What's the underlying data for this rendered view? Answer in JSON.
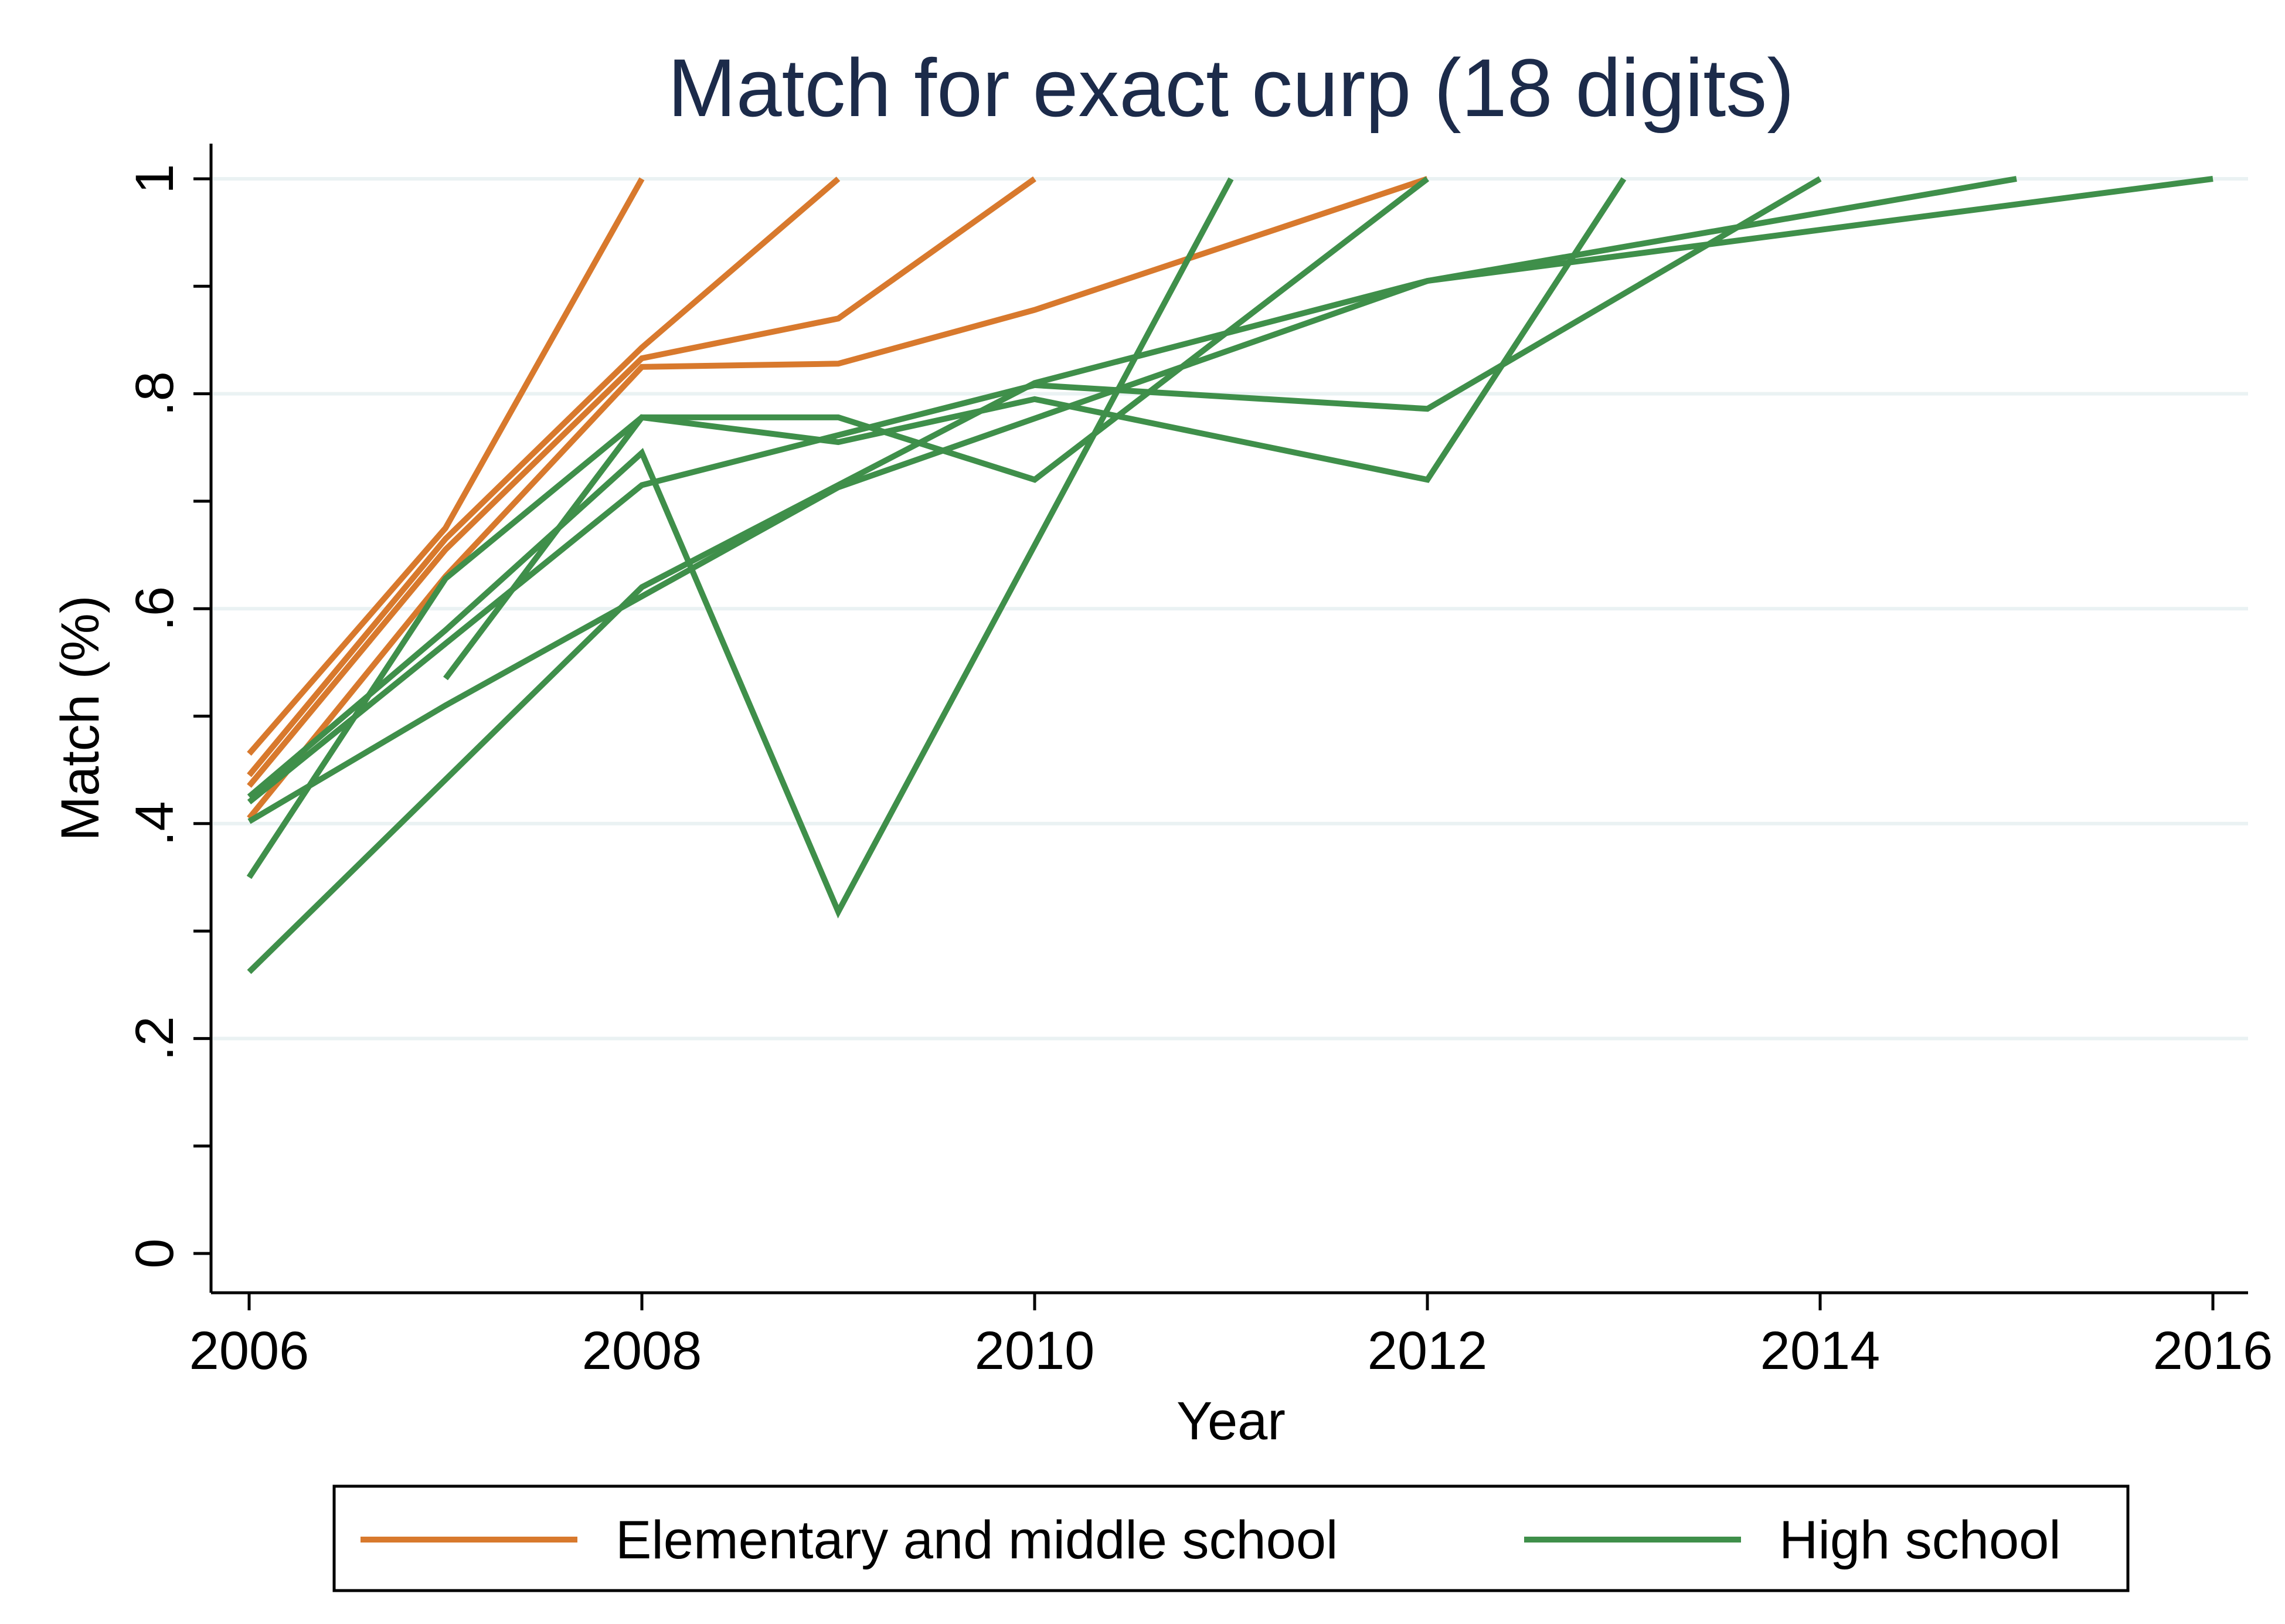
{
  "chart_data": {
    "type": "line",
    "title": "Match for exact curp (18 digits)",
    "xlabel": "Year",
    "ylabel": "Match (%)",
    "xlim": [
      2006,
      2016
    ],
    "ylim": [
      0,
      1
    ],
    "x_ticks": [
      2006,
      2008,
      2010,
      2012,
      2014,
      2016
    ],
    "y_ticks": [
      0,
      0.2,
      0.4,
      0.6,
      0.8,
      1
    ],
    "y_tick_labels": [
      "0",
      ".2",
      ".4",
      ".6",
      ".8",
      "1"
    ],
    "grid": true,
    "legend": {
      "position": "bottom",
      "entries": [
        {
          "label": "Elementary and middle school",
          "color": "#d8792d"
        },
        {
          "label": "High school",
          "color": "#3f8f4a"
        }
      ]
    },
    "colors": {
      "Elementary and middle school": "#d8792d",
      "High school": "#3f8f4a"
    },
    "series": [
      {
        "group": "Elementary and middle school",
        "points": [
          [
            2006,
            0.465
          ],
          [
            2007,
            0.675
          ],
          [
            2008,
            1.0
          ]
        ]
      },
      {
        "group": "Elementary and middle school",
        "points": [
          [
            2006,
            0.445
          ],
          [
            2007,
            0.665
          ],
          [
            2008,
            0.843
          ],
          [
            2009,
            1.0
          ]
        ]
      },
      {
        "group": "Elementary and middle school",
        "points": [
          [
            2006,
            0.435
          ],
          [
            2007,
            0.655
          ],
          [
            2008,
            0.833
          ],
          [
            2009,
            0.87
          ],
          [
            2010,
            1.0
          ]
        ]
      },
      {
        "group": "Elementary and middle school",
        "points": [
          [
            2006,
            0.405
          ],
          [
            2007,
            0.63
          ],
          [
            2008,
            0.825
          ],
          [
            2009,
            0.828
          ],
          [
            2010,
            0.878
          ],
          [
            2012,
            1.0
          ]
        ]
      },
      {
        "group": "High school",
        "points": [
          [
            2006,
            0.425
          ],
          [
            2007,
            0.58
          ],
          [
            2008,
            0.745
          ],
          [
            2009,
            0.318
          ],
          [
            2011,
            1.0
          ]
        ]
      },
      {
        "group": "High school",
        "points": [
          [
            2007,
            0.535
          ],
          [
            2008,
            0.778
          ],
          [
            2009,
            0.778
          ],
          [
            2010,
            0.72
          ],
          [
            2012,
            1.0
          ]
        ]
      },
      {
        "group": "High school",
        "points": [
          [
            2006,
            0.35
          ],
          [
            2007,
            0.628
          ],
          [
            2008,
            0.778
          ],
          [
            2009,
            0.755
          ],
          [
            2010,
            0.795
          ],
          [
            2012,
            0.72
          ],
          [
            2013,
            1.0
          ]
        ]
      },
      {
        "group": "High school",
        "points": [
          [
            2006,
            0.42
          ],
          [
            2008,
            0.715
          ],
          [
            2010,
            0.808
          ],
          [
            2012,
            0.786
          ],
          [
            2014,
            1.0
          ]
        ]
      },
      {
        "group": "High school",
        "points": [
          [
            2006,
            0.262
          ],
          [
            2008,
            0.62
          ],
          [
            2010,
            0.81
          ],
          [
            2012,
            0.905
          ],
          [
            2015,
            1.0
          ]
        ]
      },
      {
        "group": "High school",
        "points": [
          [
            2006,
            0.402
          ],
          [
            2007,
            0.51
          ],
          [
            2009,
            0.713
          ],
          [
            2012,
            0.905
          ],
          [
            2016,
            1.0
          ]
        ]
      }
    ]
  }
}
